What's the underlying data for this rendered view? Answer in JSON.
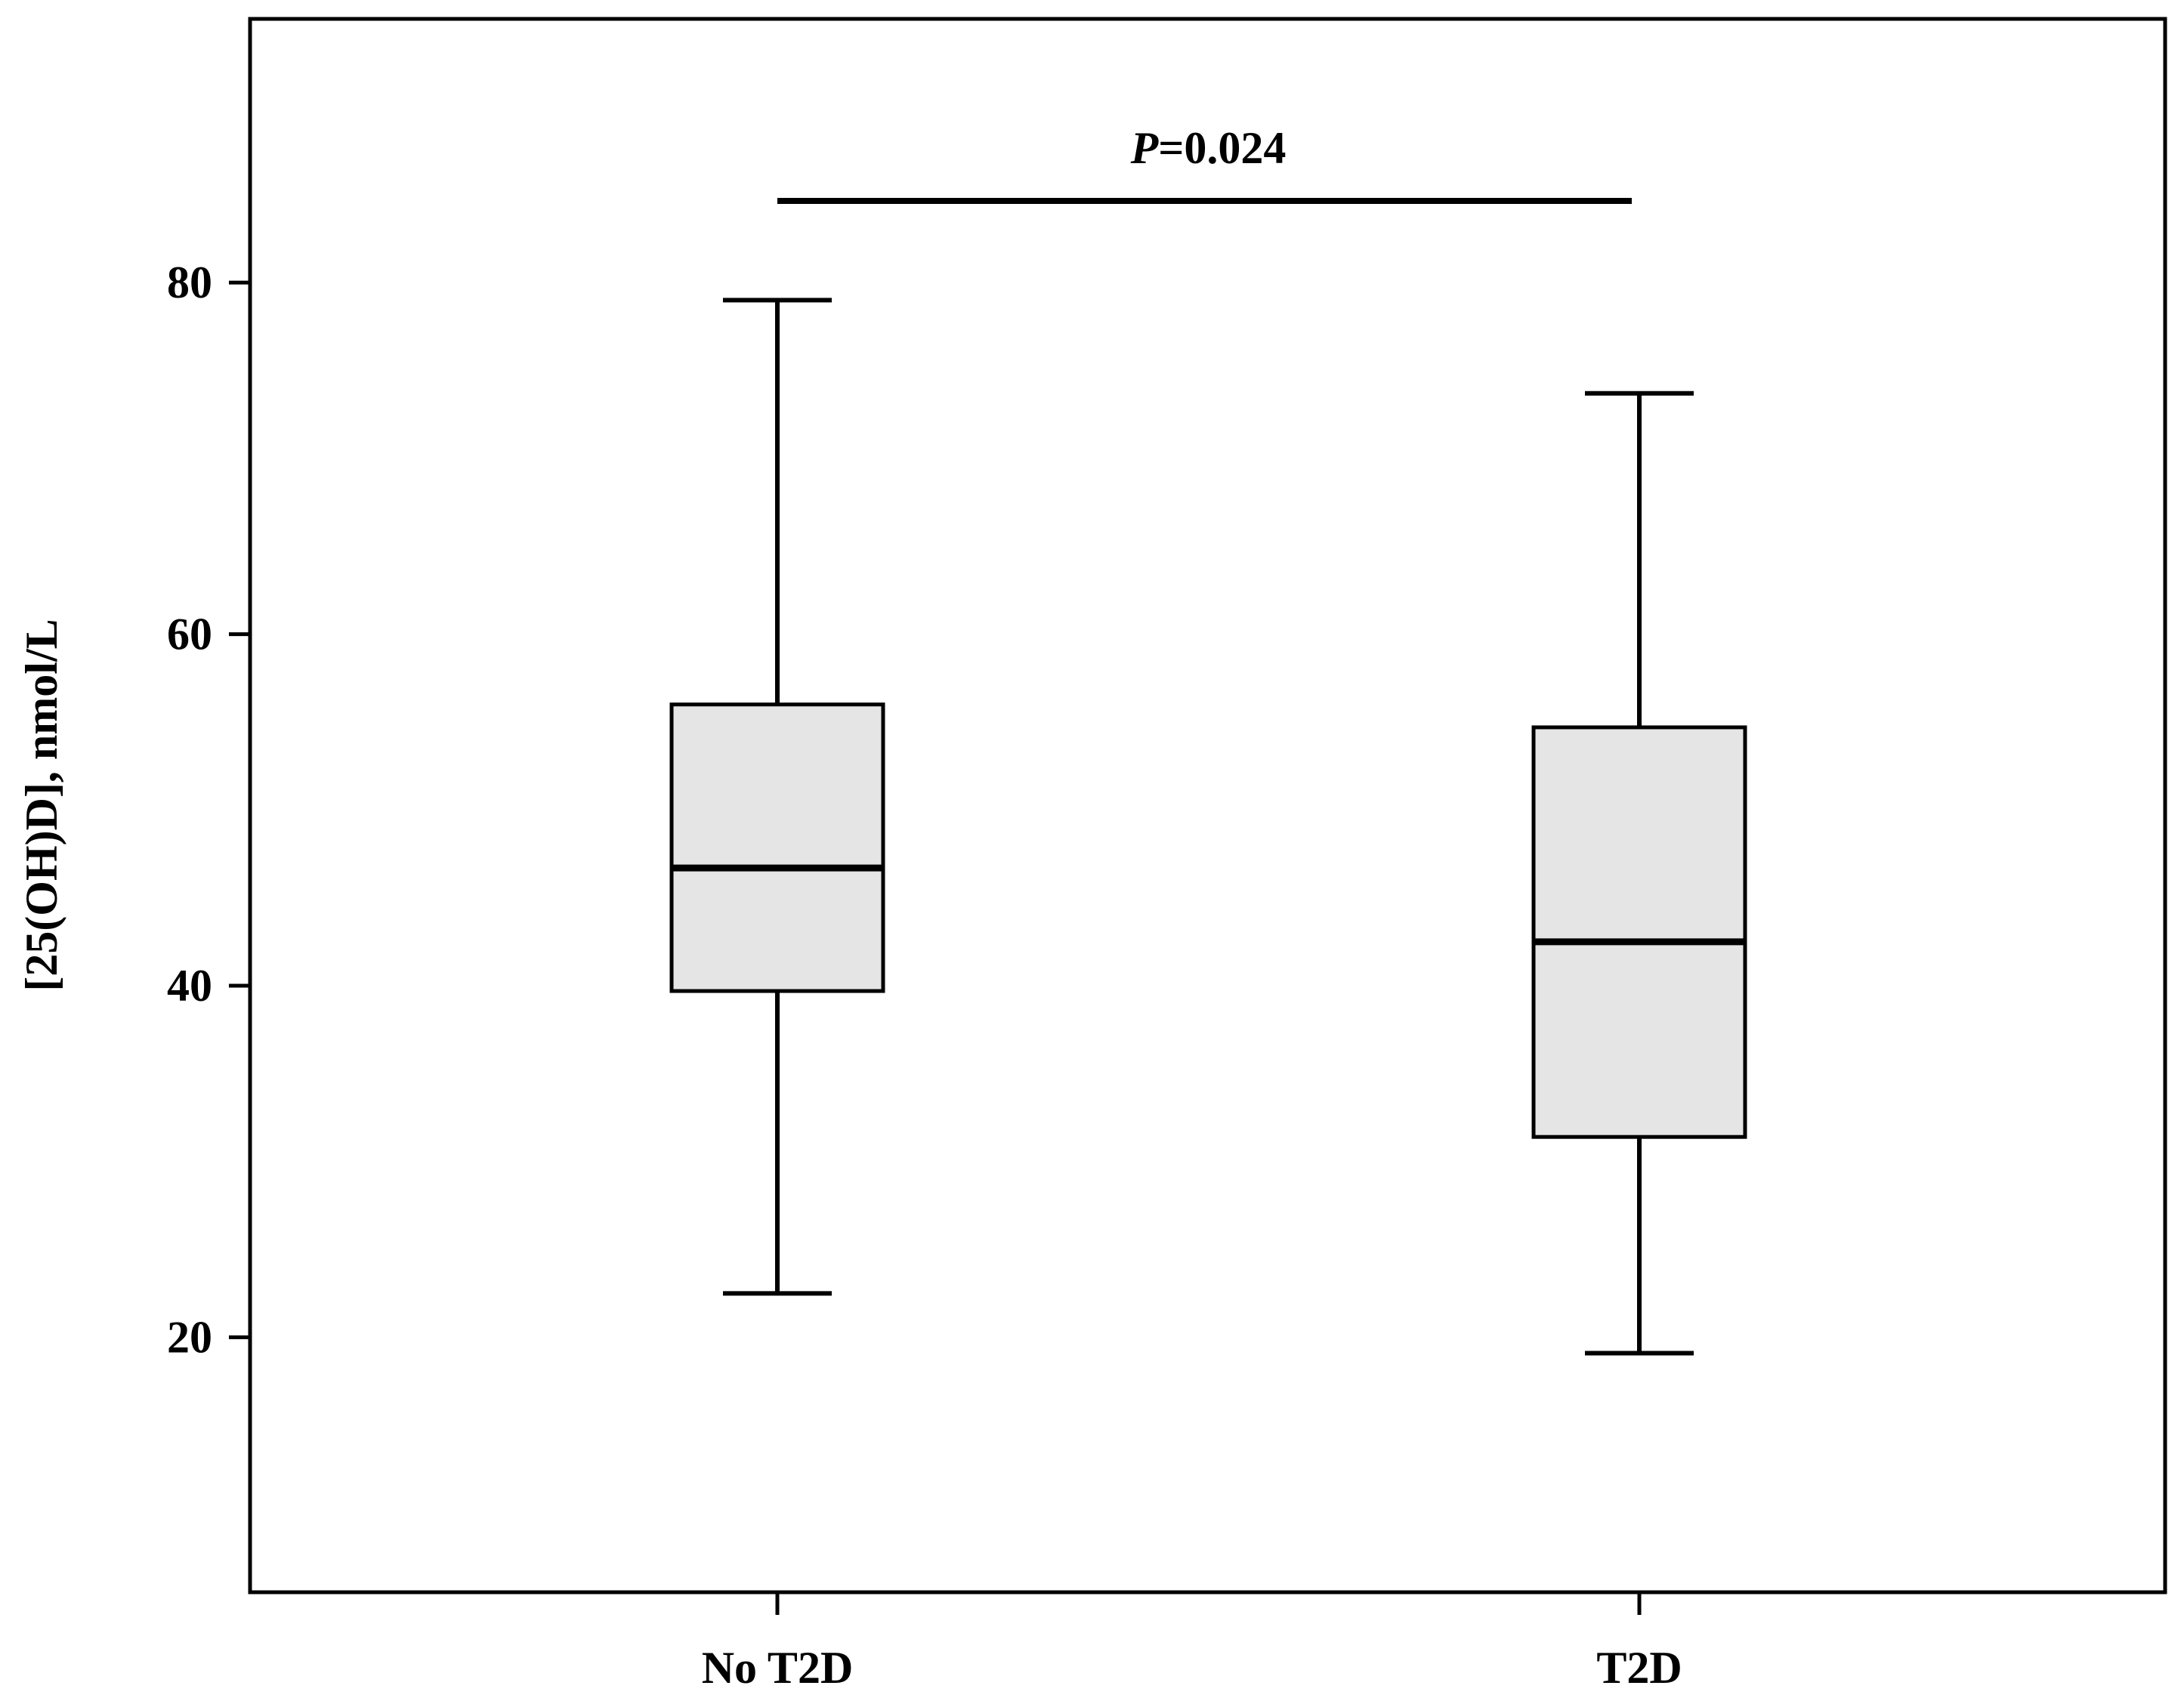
{
  "chart_data": {
    "type": "box",
    "categories": [
      "No T2D",
      "T2D"
    ],
    "boxes": [
      {
        "category": "No T2D",
        "min": 22.5,
        "q1": 39.7,
        "median": 46.7,
        "q3": 56.0,
        "max": 79.0
      },
      {
        "category": "T2D",
        "min": 19.1,
        "q1": 31.4,
        "median": 42.5,
        "q3": 54.7,
        "max": 73.7
      }
    ],
    "ylabel": "[25(OH)D], nmol/L",
    "xlabel": "",
    "ylim": [
      5.5,
      95
    ],
    "yticks": [
      20,
      40,
      60,
      80
    ],
    "grid": false,
    "annotation": {
      "prefix": "P",
      "text": "=0.024",
      "between": [
        "No T2D",
        "T2D"
      ]
    },
    "colors": {
      "box_fill": "#e5e5e5",
      "stroke": "#000000"
    }
  }
}
